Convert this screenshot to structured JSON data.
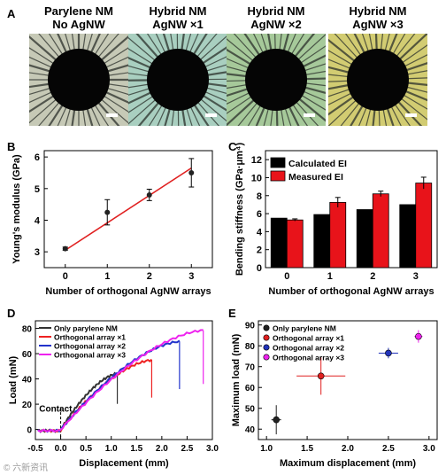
{
  "panel_a": {
    "letter": "A",
    "photos": [
      {
        "title_line1": "Parylene NM",
        "title_line2": "No AgNW",
        "tint": "#c6c9b6"
      },
      {
        "title_line1": "Hybrid NM",
        "title_line2": "AgNW ×1",
        "tint": "#a9cfc0"
      },
      {
        "title_line1": "Hybrid NM",
        "title_line2": "AgNW ×2",
        "tint": "#a6c99a"
      },
      {
        "title_line1": "Hybrid NM",
        "title_line2": "AgNW ×3",
        "tint": "#d2cc72"
      }
    ]
  },
  "chart_data": [
    {
      "panel": "B",
      "type": "scatter",
      "xlabel": "Number of orthogonal AgNW arrays",
      "ylabel": "Young's modulus (GPa)",
      "xlim": [
        -0.5,
        3.5
      ],
      "ylim": [
        2.5,
        6.2
      ],
      "xticks": [
        "0",
        "1",
        "2",
        "3"
      ],
      "yticks": [
        "3",
        "4",
        "5",
        "6"
      ],
      "series": [
        {
          "x": [
            0,
            1,
            2,
            3
          ],
          "y": [
            3.1,
            4.25,
            4.8,
            5.5
          ],
          "err": [
            0.05,
            0.4,
            0.18,
            0.45
          ]
        }
      ],
      "fit_line": {
        "x": [
          0,
          3
        ],
        "y": [
          3.05,
          5.65
        ],
        "color": "#e02020"
      }
    },
    {
      "panel": "C",
      "type": "bar",
      "xlabel": "Number of orthogonal AgNW arrays",
      "ylabel": "Bending stiffness (GPa·μm⁴)",
      "categories": [
        "0",
        "1",
        "2",
        "3"
      ],
      "ylim": [
        0,
        13
      ],
      "yticks": [
        "0",
        "2",
        "4",
        "6",
        "8",
        "10",
        "12"
      ],
      "legend": "top-left",
      "series": [
        {
          "name": "Calculated EI",
          "color": "#000000",
          "values": [
            5.5,
            5.9,
            6.45,
            7.0
          ],
          "err": [
            0,
            0,
            0,
            0
          ]
        },
        {
          "name": "Measured EI",
          "color": "#e8131a",
          "values": [
            5.3,
            7.25,
            8.2,
            9.4
          ],
          "err": [
            0.12,
            0.55,
            0.3,
            0.65
          ]
        }
      ]
    },
    {
      "panel": "D",
      "type": "line",
      "xlabel": "Displacement (mm)",
      "ylabel": "Load (mN)",
      "xlim": [
        -0.5,
        3.0
      ],
      "ylim": [
        -8,
        86
      ],
      "xticks": [
        "-0.5",
        "0.0",
        "0.5",
        "1.0",
        "1.5",
        "2.0",
        "2.5",
        "3.0"
      ],
      "yticks": [
        "0",
        "20",
        "40",
        "60",
        "80"
      ],
      "annotation": "Contact",
      "legend": "top-left",
      "series": [
        {
          "name": "Only parylene NM",
          "color": "#333333",
          "failure_x": 1.12,
          "peak_y": 45
        },
        {
          "name": "Orthogonal array ×1",
          "color": "#ee2222",
          "failure_x": 1.8,
          "peak_y": 56
        },
        {
          "name": "Orthogonal array ×2",
          "color": "#2233cc",
          "failure_x": 2.35,
          "peak_y": 71
        },
        {
          "name": "Orthogonal array ×3",
          "color": "#ee22ee",
          "failure_x": 2.82,
          "peak_y": 80
        }
      ]
    },
    {
      "panel": "E",
      "type": "scatter",
      "xlabel": "Maximum displacement (mm)",
      "ylabel": "Maximum load (mN)",
      "xlim": [
        0.9,
        3.1
      ],
      "ylim": [
        35,
        92
      ],
      "xticks": [
        "1.0",
        "1.5",
        "2.0",
        "2.5",
        "3.0"
      ],
      "yticks": [
        "40",
        "50",
        "60",
        "70",
        "80",
        "90"
      ],
      "legend": "top-left",
      "series": [
        {
          "name": "Only parylene NM",
          "color": "#222222",
          "x": 1.12,
          "y": 44.5,
          "xerr": 0.06,
          "yerr": 7
        },
        {
          "name": "Orthogonal array ×1",
          "color": "#e02020",
          "x": 1.67,
          "y": 65.5,
          "xerr": 0.3,
          "yerr": 9
        },
        {
          "name": "Orthogonal array ×2",
          "color": "#2233bb",
          "x": 2.5,
          "y": 76.5,
          "xerr": 0.12,
          "yerr": 2.5
        },
        {
          "name": "Orthogonal array ×3",
          "color": "#ee22ee",
          "x": 2.87,
          "y": 84.5,
          "xerr": 0.05,
          "yerr": 3
        }
      ]
    }
  ],
  "watermark": "© 六新资讯"
}
